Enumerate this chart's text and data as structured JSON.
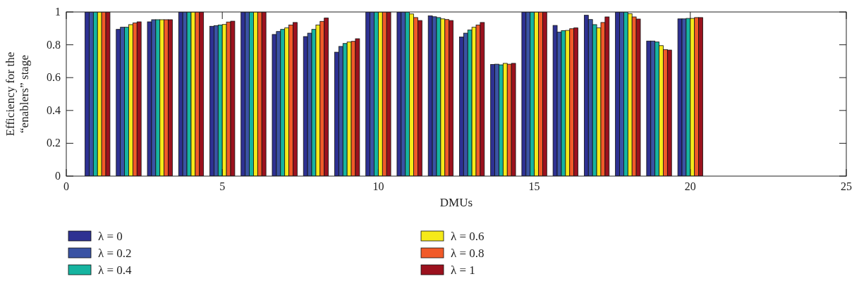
{
  "chart_data": {
    "type": "bar",
    "xlabel": "DMUs",
    "ylabel": "Efficiency for the\n“enablers” stage",
    "x": [
      1,
      2,
      3,
      4,
      5,
      6,
      7,
      8,
      9,
      10,
      11,
      12,
      13,
      14,
      15,
      16,
      17,
      18,
      19,
      20
    ],
    "xlim": [
      0,
      25
    ],
    "xticks": [
      0,
      5,
      10,
      15,
      20,
      25
    ],
    "ylim": [
      0,
      1
    ],
    "yticks": [
      0,
      0.2,
      0.4,
      0.6,
      0.8,
      1
    ],
    "grid": false,
    "legend": "bottom",
    "series": [
      {
        "name": "λ = 0",
        "color": "#2e3192",
        "values": [
          1,
          0.894,
          0.94,
          1,
          0.913,
          1,
          0.863,
          0.85,
          0.755,
          1,
          1,
          0.976,
          0.848,
          0.68,
          1,
          0.918,
          0.98,
          1,
          0.823,
          0.958
        ]
      },
      {
        "name": "λ = 0.2",
        "color": "#3a53a4",
        "values": [
          1,
          0.907,
          0.953,
          1,
          0.917,
          1,
          0.881,
          0.871,
          0.79,
          1,
          1,
          0.971,
          0.871,
          0.682,
          1,
          0.877,
          0.954,
          1,
          0.823,
          0.958
        ]
      },
      {
        "name": "λ = 0.4",
        "color": "#16b4a0",
        "values": [
          1,
          0.907,
          0.953,
          1,
          0.921,
          1,
          0.894,
          0.894,
          0.808,
          1,
          1,
          0.966,
          0.89,
          0.678,
          1,
          0.886,
          0.923,
          1,
          0.818,
          0.961
        ]
      },
      {
        "name": "λ = 0.6",
        "color": "#f5ea1a",
        "values": [
          1,
          0.923,
          0.953,
          1,
          0.924,
          1,
          0.903,
          0.921,
          0.817,
          1,
          0.988,
          0.958,
          0.907,
          0.687,
          1,
          0.888,
          0.903,
          0.99,
          0.795,
          0.961
        ]
      },
      {
        "name": "λ = 0.8",
        "color": "#f15a29",
        "values": [
          1,
          0.933,
          0.953,
          1,
          0.939,
          1,
          0.921,
          0.943,
          0.821,
          1,
          0.966,
          0.954,
          0.921,
          0.682,
          1,
          0.898,
          0.936,
          0.97,
          0.771,
          0.966
        ]
      },
      {
        "name": "λ = 1",
        "color": "#9b111e",
        "values": [
          1,
          0.94,
          0.953,
          1,
          0.944,
          1,
          0.936,
          0.963,
          0.837,
          1,
          0.948,
          0.948,
          0.936,
          0.687,
          1,
          0.903,
          0.97,
          0.957,
          0.768,
          0.966
        ]
      }
    ]
  }
}
